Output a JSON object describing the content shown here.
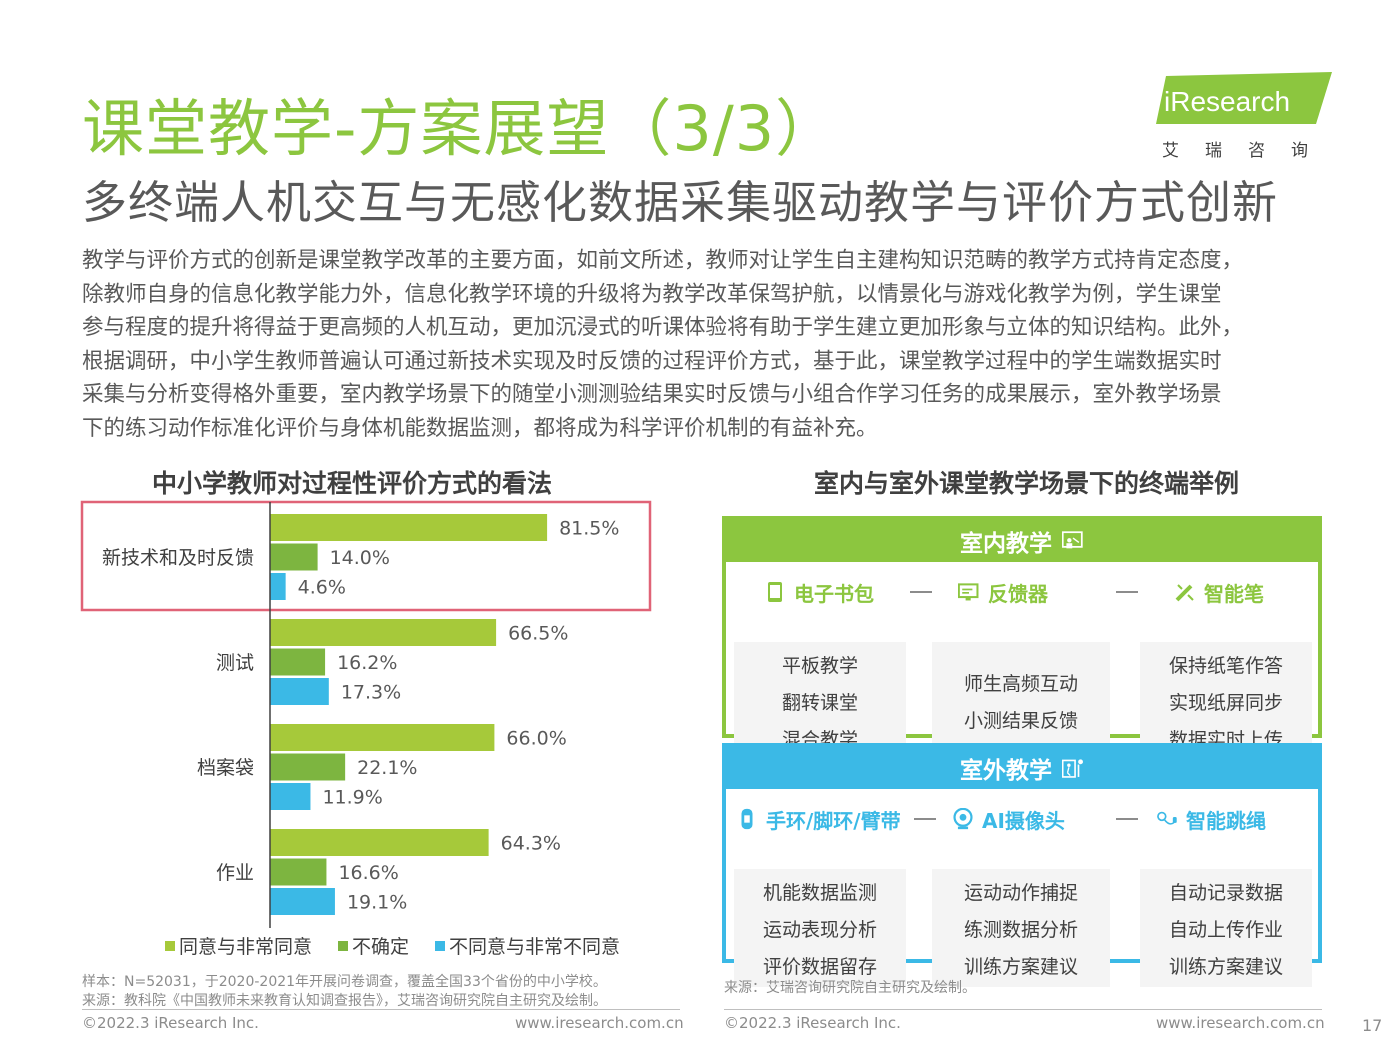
{
  "header": {
    "title": "课堂教学-方案展望（3/3）",
    "subtitle": "多终端人机交互与无感化数据采集驱动教学与评价方式创新"
  },
  "logo": {
    "brand": "iResearch",
    "cn": "艾瑞咨询"
  },
  "intro_lines": [
    "教学与评价方式的创新是课堂教学改革的主要方面，如前文所述，教师对让学生自主建构知识范畴的教学方式持肯定态度，",
    "除教师自身的信息化教学能力外，信息化教学环境的升级将为教学改革保驾护航，以情景化与游戏化教学为例，学生课堂",
    "参与程度的提升将得益于更高频的人机互动，更加沉浸式的听课体验将有助于学生建立更加形象与立体的知识结构。此外，",
    "根据调研，中小学生教师普遍认可通过新技术实现及时反馈的过程评价方式，基于此，课堂教学过程中的学生端数据实时",
    "采集与分析变得格外重要，室内教学场景下的随堂小测测验结果实时反馈与小组合作学习任务的成果展示，室外教学场景",
    "下的练习动作标准化评价与身体机能数据监测，都将成为科学评价机制的有益补充。"
  ],
  "left_section": {
    "title": "中小学教师对过程性评价方式的看法"
  },
  "chart_data": {
    "type": "bar",
    "orientation": "horizontal",
    "title": "中小学教师对过程性评价方式的看法",
    "categories": [
      "新技术和及时反馈",
      "测试",
      "档案袋",
      "作业"
    ],
    "series": [
      {
        "name": "同意与非常同意",
        "values": [
          81.5,
          66.5,
          66.0,
          64.3
        ],
        "color": "#a6c93a"
      },
      {
        "name": "不确定",
        "values": [
          14.0,
          16.2,
          22.1,
          16.6
        ],
        "color": "#7db540"
      },
      {
        "name": "不同意与非常不同意",
        "values": [
          4.6,
          17.3,
          11.9,
          19.1
        ],
        "color": "#3bb9e6"
      }
    ],
    "value_suffix": "%",
    "xlim": [
      0,
      100
    ],
    "grid": false,
    "legend_position": "bottom",
    "highlight_category": "新技术和及时反馈",
    "highlight_color": "#e06377"
  },
  "notes": {
    "left_sample": "样本：N=52031，于2020-2021年开展问卷调查，覆盖全国33个省份的中小学校。",
    "left_source": "来源：教科院《中国教师未来教育认知调查报告》，艾瑞咨询研究院自主研究及绘制。",
    "right_source": "来源：艾瑞咨询研究院自主研究及绘制。"
  },
  "right_section": {
    "title": "室内与室外课堂教学场景下的终端举例",
    "indoor": {
      "title": "室内教学",
      "color": "#8cc63f",
      "icon": "classroom-icon",
      "devices": [
        {
          "name": "电子书包",
          "icon": "tablet-icon",
          "features": [
            "平板教学",
            "翻转课堂",
            "混合教学"
          ]
        },
        {
          "name": "反馈器",
          "icon": "clicker-icon",
          "features": [
            "师生高频互动",
            "小测结果反馈"
          ]
        },
        {
          "name": "智能笔",
          "icon": "smart-pen-icon",
          "features": [
            "保持纸笔作答",
            "实现纸屏同步",
            "数据实时上传"
          ]
        }
      ]
    },
    "outdoor": {
      "title": "室外教学",
      "color": "#3bb9e6",
      "icon": "outdoor-sport-icon",
      "devices": [
        {
          "name": "手环/脚环/臂带",
          "icon": "wristband-icon",
          "features": [
            "机能数据监测",
            "运动表现分析",
            "评价数据留存"
          ]
        },
        {
          "name": "AI摄像头",
          "icon": "camera-icon",
          "features": [
            "运动动作捕捉",
            "练测数据分析",
            "训练方案建议"
          ]
        },
        {
          "name": "智能跳绳",
          "icon": "jump-rope-icon",
          "features": [
            "自动记录数据",
            "自动上传作业",
            "训练方案建议"
          ]
        }
      ]
    }
  },
  "footer": {
    "copyright_left": "©2022.3 iResearch Inc.",
    "url_left": "www.iresearch.com.cn",
    "copyright_right": "©2022.3 iResearch Inc.",
    "url_right": "www.iresearch.com.cn",
    "page_number": "17"
  }
}
